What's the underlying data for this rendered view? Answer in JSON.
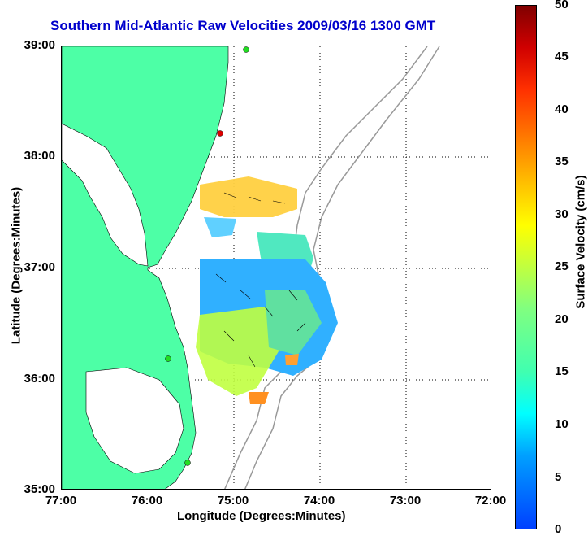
{
  "title": "Southern Mid-Atlantic Raw Velocities 2009/03/16 1300 GMT",
  "xlabel": "Longitude (Degrees:Minutes)",
  "ylabel": "Latitude (Degrees:Minutes)",
  "colorbar_label": "Surface Velocity (cm/s)",
  "x_ticks": [
    "77:00",
    "76:00",
    "75:00",
    "74:00",
    "73:00",
    "72:00"
  ],
  "y_ticks": [
    "39:00",
    "38:00",
    "37:00",
    "36:00",
    "35:00"
  ],
  "colorbar_ticks": [
    "50",
    "45",
    "40",
    "35",
    "30",
    "25",
    "20",
    "15",
    "10",
    "5",
    "0"
  ],
  "colors": {
    "land": "#4dffa6",
    "title": "#0000cc",
    "bathymetry": "#999999",
    "station": "#22dd22",
    "station_alert": "#dd0000"
  },
  "chart_data": {
    "type": "heatmap",
    "title": "Southern Mid-Atlantic Raw Velocities 2009/03/16 1300 GMT",
    "xlabel": "Longitude (Degrees:Minutes)",
    "ylabel": "Latitude (Degrees:Minutes)",
    "xlim": [
      "77:00",
      "72:00"
    ],
    "ylim": [
      "35:00",
      "39:00"
    ],
    "colorbar": {
      "label": "Surface Velocity (cm/s)",
      "range": [
        0,
        50
      ]
    },
    "grid": true
  }
}
